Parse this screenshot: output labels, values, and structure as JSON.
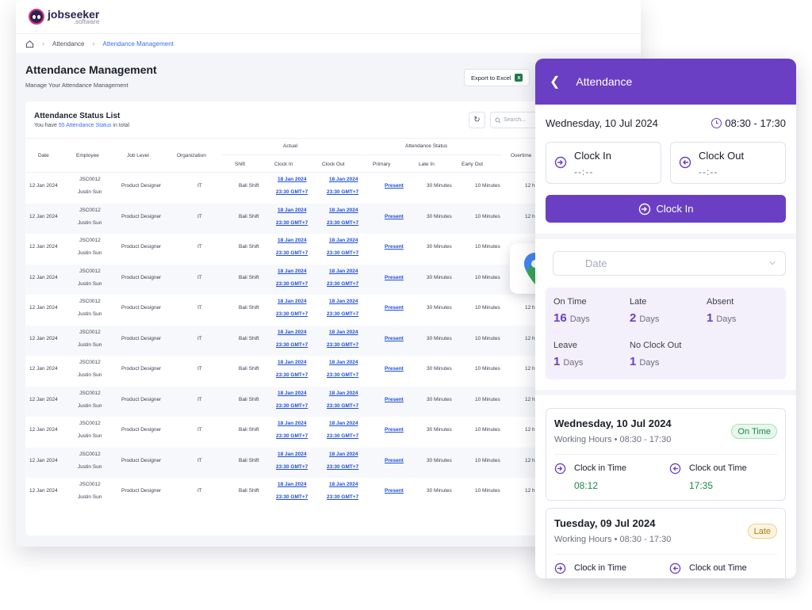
{
  "app": {
    "brand": "jobseeker",
    "brand_sub": ".software"
  },
  "breadcrumb": {
    "item1": "Attendance",
    "current": "Attendance Management"
  },
  "page": {
    "title": "Attendance Management",
    "subtitle": "Manage Your Attendance Management",
    "export_label": "Export to Excel"
  },
  "list": {
    "title": "Attendance Status List",
    "sub_prefix": "You have",
    "sub_link": "55 Attendance Status",
    "sub_suffix": "in total",
    "search_placeholder": "Search..."
  },
  "table": {
    "headers": {
      "date": "Date",
      "employee": "Employee",
      "job_level": "Job Level",
      "organization": "Organization",
      "actual": "Actual",
      "attendance_status": "Attendance Status",
      "shift": "Shift",
      "clock_in": "Clock In",
      "clock_out": "Clock Out",
      "primary": "Primary",
      "late_in": "Late In",
      "early_out": "Early Out",
      "overtime": "Overtime"
    },
    "rows": [
      {
        "date": "12 Jan 2024",
        "emp_id": "JSC0012",
        "emp_name": "Justin Sun",
        "job": "Product Designer",
        "org": "IT",
        "shift": "Bali Shift",
        "in_date": "18 Jan 2024",
        "in_time": "23:30 GMT+7",
        "out_date": "18 Jan 2024",
        "out_time": "23:30 GMT+7",
        "primary": "Present",
        "late": "30 Minutes",
        "early": "10 Minutes",
        "ot": "12 h"
      },
      {
        "date": "12 Jan 2024",
        "emp_id": "JSC0012",
        "emp_name": "Justin Sun",
        "job": "Product Designer",
        "org": "IT",
        "shift": "Bali Shift",
        "in_date": "18 Jan 2024",
        "in_time": "23:30 GMT+7",
        "out_date": "18 Jan 2024",
        "out_time": "23:30 GMT+7",
        "primary": "Present",
        "late": "30 Minutes",
        "early": "10 Minutes",
        "ot": "12 h"
      },
      {
        "date": "12 Jan 2024",
        "emp_id": "JSC0012",
        "emp_name": "Justin Sun",
        "job": "Product Designer",
        "org": "IT",
        "shift": "Bali Shift",
        "in_date": "18 Jan 2024",
        "in_time": "23:30 GMT+7",
        "out_date": "18 Jan 2024",
        "out_time": "23:30 GMT+7",
        "primary": "Present",
        "late": "30 Minutes",
        "early": "10 Minutes",
        "ot": "12 h"
      },
      {
        "date": "12 Jan 2024",
        "emp_id": "JSC0012",
        "emp_name": "Justin Sun",
        "job": "Product Designer",
        "org": "IT",
        "shift": "Bali Shift",
        "in_date": "18 Jan 2024",
        "in_time": "23:30 GMT+7",
        "out_date": "18 Jan 2024",
        "out_time": "23:30 GMT+7",
        "primary": "Present",
        "late": "30 Minutes",
        "early": "10 Minutes",
        "ot": "12 h"
      },
      {
        "date": "12 Jan 2024",
        "emp_id": "JSC0012",
        "emp_name": "Justin Sun",
        "job": "Product Designer",
        "org": "IT",
        "shift": "Bali Shift",
        "in_date": "18 Jan 2024",
        "in_time": "23:30 GMT+7",
        "out_date": "18 Jan 2024",
        "out_time": "23:30 GMT+7",
        "primary": "Present",
        "late": "30 Minutes",
        "early": "10 Minutes",
        "ot": "12 h"
      },
      {
        "date": "12 Jan 2024",
        "emp_id": "JSC0012",
        "emp_name": "Justin Sun",
        "job": "Product Designer",
        "org": "IT",
        "shift": "Bali Shift",
        "in_date": "18 Jan 2024",
        "in_time": "23:30 GMT+7",
        "out_date": "18 Jan 2024",
        "out_time": "23:30 GMT+7",
        "primary": "Present",
        "late": "30 Minutes",
        "early": "10 Minutes",
        "ot": "12 h"
      },
      {
        "date": "12 Jan 2024",
        "emp_id": "JSC0012",
        "emp_name": "Justin Sun",
        "job": "Product Designer",
        "org": "IT",
        "shift": "Bali Shift",
        "in_date": "18 Jan 2024",
        "in_time": "23:30 GMT+7",
        "out_date": "18 Jan 2024",
        "out_time": "23:30 GMT+7",
        "primary": "Present",
        "late": "30 Minutes",
        "early": "10 Minutes",
        "ot": "12 h"
      },
      {
        "date": "12 Jan 2024",
        "emp_id": "JSC0012",
        "emp_name": "Justin Sun",
        "job": "Product Designer",
        "org": "IT",
        "shift": "Bali Shift",
        "in_date": "18 Jan 2024",
        "in_time": "23:30 GMT+7",
        "out_date": "18 Jan 2024",
        "out_time": "23:30 GMT+7",
        "primary": "Present",
        "late": "30 Minutes",
        "early": "10 Minutes",
        "ot": "12 h"
      },
      {
        "date": "12 Jan 2024",
        "emp_id": "JSC0012",
        "emp_name": "Justin Sun",
        "job": "Product Designer",
        "org": "IT",
        "shift": "Bali Shift",
        "in_date": "18 Jan 2024",
        "in_time": "23:30 GMT+7",
        "out_date": "18 Jan 2024",
        "out_time": "23:30 GMT+7",
        "primary": "Present",
        "late": "30 Minutes",
        "early": "10 Minutes",
        "ot": "12 h"
      },
      {
        "date": "12 Jan 2024",
        "emp_id": "JSC0012",
        "emp_name": "Justin Sun",
        "job": "Product Designer",
        "org": "IT",
        "shift": "Bali Shift",
        "in_date": "18 Jan 2024",
        "in_time": "23:30 GMT+7",
        "out_date": "18 Jan 2024",
        "out_time": "23:30 GMT+7",
        "primary": "Present",
        "late": "30 Minutes",
        "early": "10 Minutes",
        "ot": "12 h"
      },
      {
        "date": "12 Jan 2024",
        "emp_id": "JSC0012",
        "emp_name": "Justin Sun",
        "job": "Product Designer",
        "org": "IT",
        "shift": "Bali Shift",
        "in_date": "18 Jan 2024",
        "in_time": "23:30 GMT+7",
        "out_date": "18 Jan 2024",
        "out_time": "23:30 GMT+7",
        "primary": "Present",
        "late": "30 Minutes",
        "early": "10 Minutes",
        "ot": "12 h"
      }
    ]
  },
  "panel": {
    "title": "Attendance",
    "today": "Wednesday, 10 Jul 2024",
    "hours": "08:30 - 17:30",
    "clock_in_label": "Clock In",
    "clock_in_value": "--:--",
    "clock_out_label": "Clock Out",
    "clock_out_value": "--:--",
    "clock_in_button": "Clock In",
    "date_placeholder": "Date",
    "stats": [
      {
        "label": "On Time",
        "value": "16",
        "unit": "Days"
      },
      {
        "label": "Late",
        "value": "2",
        "unit": "Days"
      },
      {
        "label": "Absent",
        "value": "1",
        "unit": "Days"
      },
      {
        "label": "Leave",
        "value": "1",
        "unit": "Days"
      },
      {
        "label": "No Clock Out",
        "value": "1",
        "unit": "Days"
      }
    ],
    "history": [
      {
        "date": "Wednesday, 10 Jul 2024",
        "wh_label": "Working Hours",
        "wh": "08:30 - 17:30",
        "status": "On Time",
        "in_label": "Clock in Time",
        "in_time": "08:12",
        "out_label": "Clock out Time",
        "out_time": "17:35"
      },
      {
        "date": "Tuesday, 09 Jul 2024",
        "wh_label": "Working Hours",
        "wh": "08:30 - 17:30",
        "status": "Late",
        "in_label": "Clock in Time",
        "out_label": "Clock out Time"
      }
    ]
  },
  "colors": {
    "accent": "#6a3fc3",
    "link": "#1e4fd6",
    "success": "#1b8a45",
    "warning": "#b5790f"
  }
}
